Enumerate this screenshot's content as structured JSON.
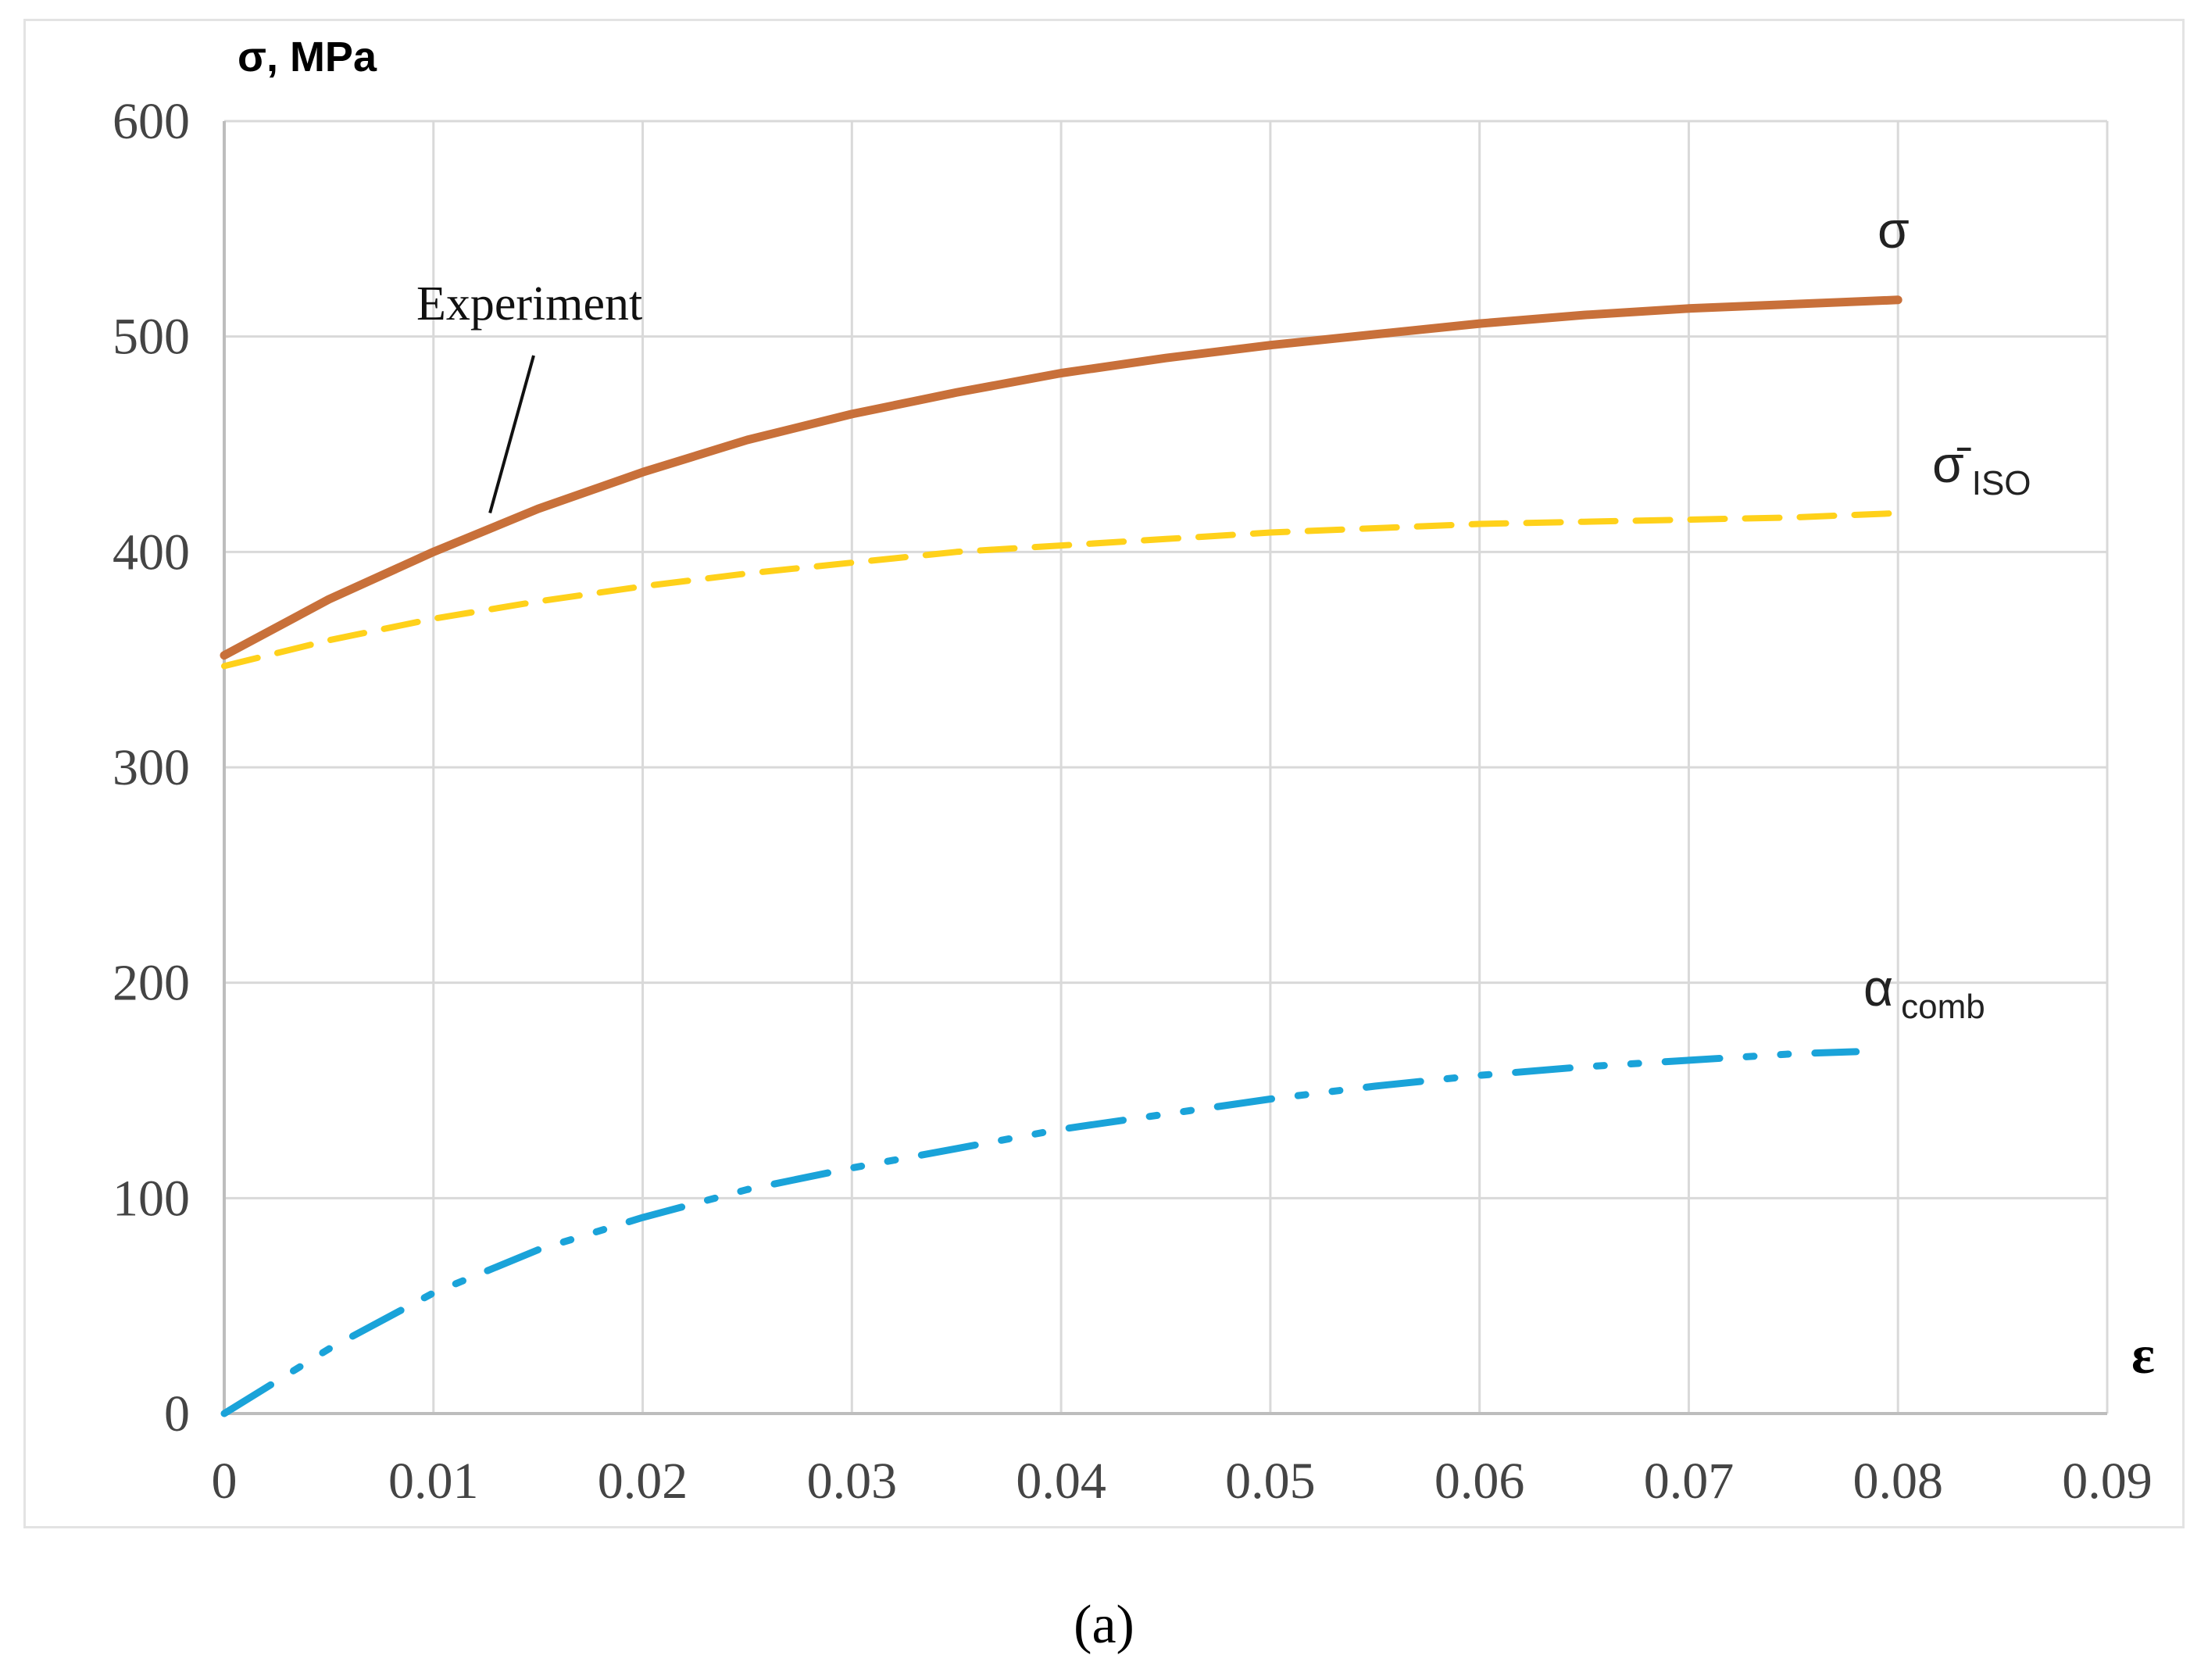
{
  "caption": "(a)",
  "chart_data": {
    "type": "line",
    "ylabel": "σ, MPa",
    "xlabel": "ε",
    "xlim": [
      0,
      0.09
    ],
    "ylim": [
      0,
      600
    ],
    "x_ticks": [
      "0",
      "0.01",
      "0.02",
      "0.03",
      "0.04",
      "0.05",
      "0.06",
      "0.07",
      "0.08",
      "0.09"
    ],
    "y_ticks": [
      "0",
      "100",
      "200",
      "300",
      "400",
      "500",
      "600"
    ],
    "grid": true,
    "annotations": [
      {
        "text": "Experiment",
        "target_series": "σ",
        "target_x": 0.013,
        "target_y": 413
      }
    ],
    "series": [
      {
        "name": "σ",
        "label_main": "σ",
        "label_sub": "",
        "style": "solid",
        "color": "#c8703a",
        "x": [
          0,
          0.005,
          0.01,
          0.015,
          0.02,
          0.025,
          0.03,
          0.035,
          0.04,
          0.045,
          0.05,
          0.055,
          0.06,
          0.065,
          0.07,
          0.075,
          0.08
        ],
        "y": [
          352,
          378,
          400,
          420,
          437,
          452,
          464,
          474,
          483,
          490,
          496,
          501,
          506,
          510,
          513,
          515,
          517
        ]
      },
      {
        "name": "σ̄ISO",
        "label_main": "σ̄",
        "label_sub": "ISO",
        "style": "dashed",
        "color": "#ffd11a",
        "x": [
          0,
          0.005,
          0.01,
          0.015,
          0.02,
          0.025,
          0.03,
          0.035,
          0.04,
          0.045,
          0.05,
          0.055,
          0.06,
          0.065,
          0.07,
          0.075,
          0.08
        ],
        "y": [
          347,
          359,
          369,
          377,
          384,
          390,
          395,
          400,
          403,
          406,
          409,
          411,
          413,
          414,
          415,
          416,
          418
        ]
      },
      {
        "name": "α comb",
        "label_main": "α",
        "label_sub": "comb",
        "style": "dash-dot-dot",
        "color": "#1aa3d9",
        "x": [
          0,
          0.005,
          0.01,
          0.015,
          0.02,
          0.025,
          0.03,
          0.035,
          0.04,
          0.045,
          0.05,
          0.055,
          0.06,
          0.065,
          0.07,
          0.075,
          0.078
        ],
        "y": [
          0,
          30,
          56,
          76,
          91,
          104,
          114,
          123,
          132,
          139,
          146,
          152,
          157,
          161,
          164,
          167,
          168
        ]
      }
    ]
  }
}
